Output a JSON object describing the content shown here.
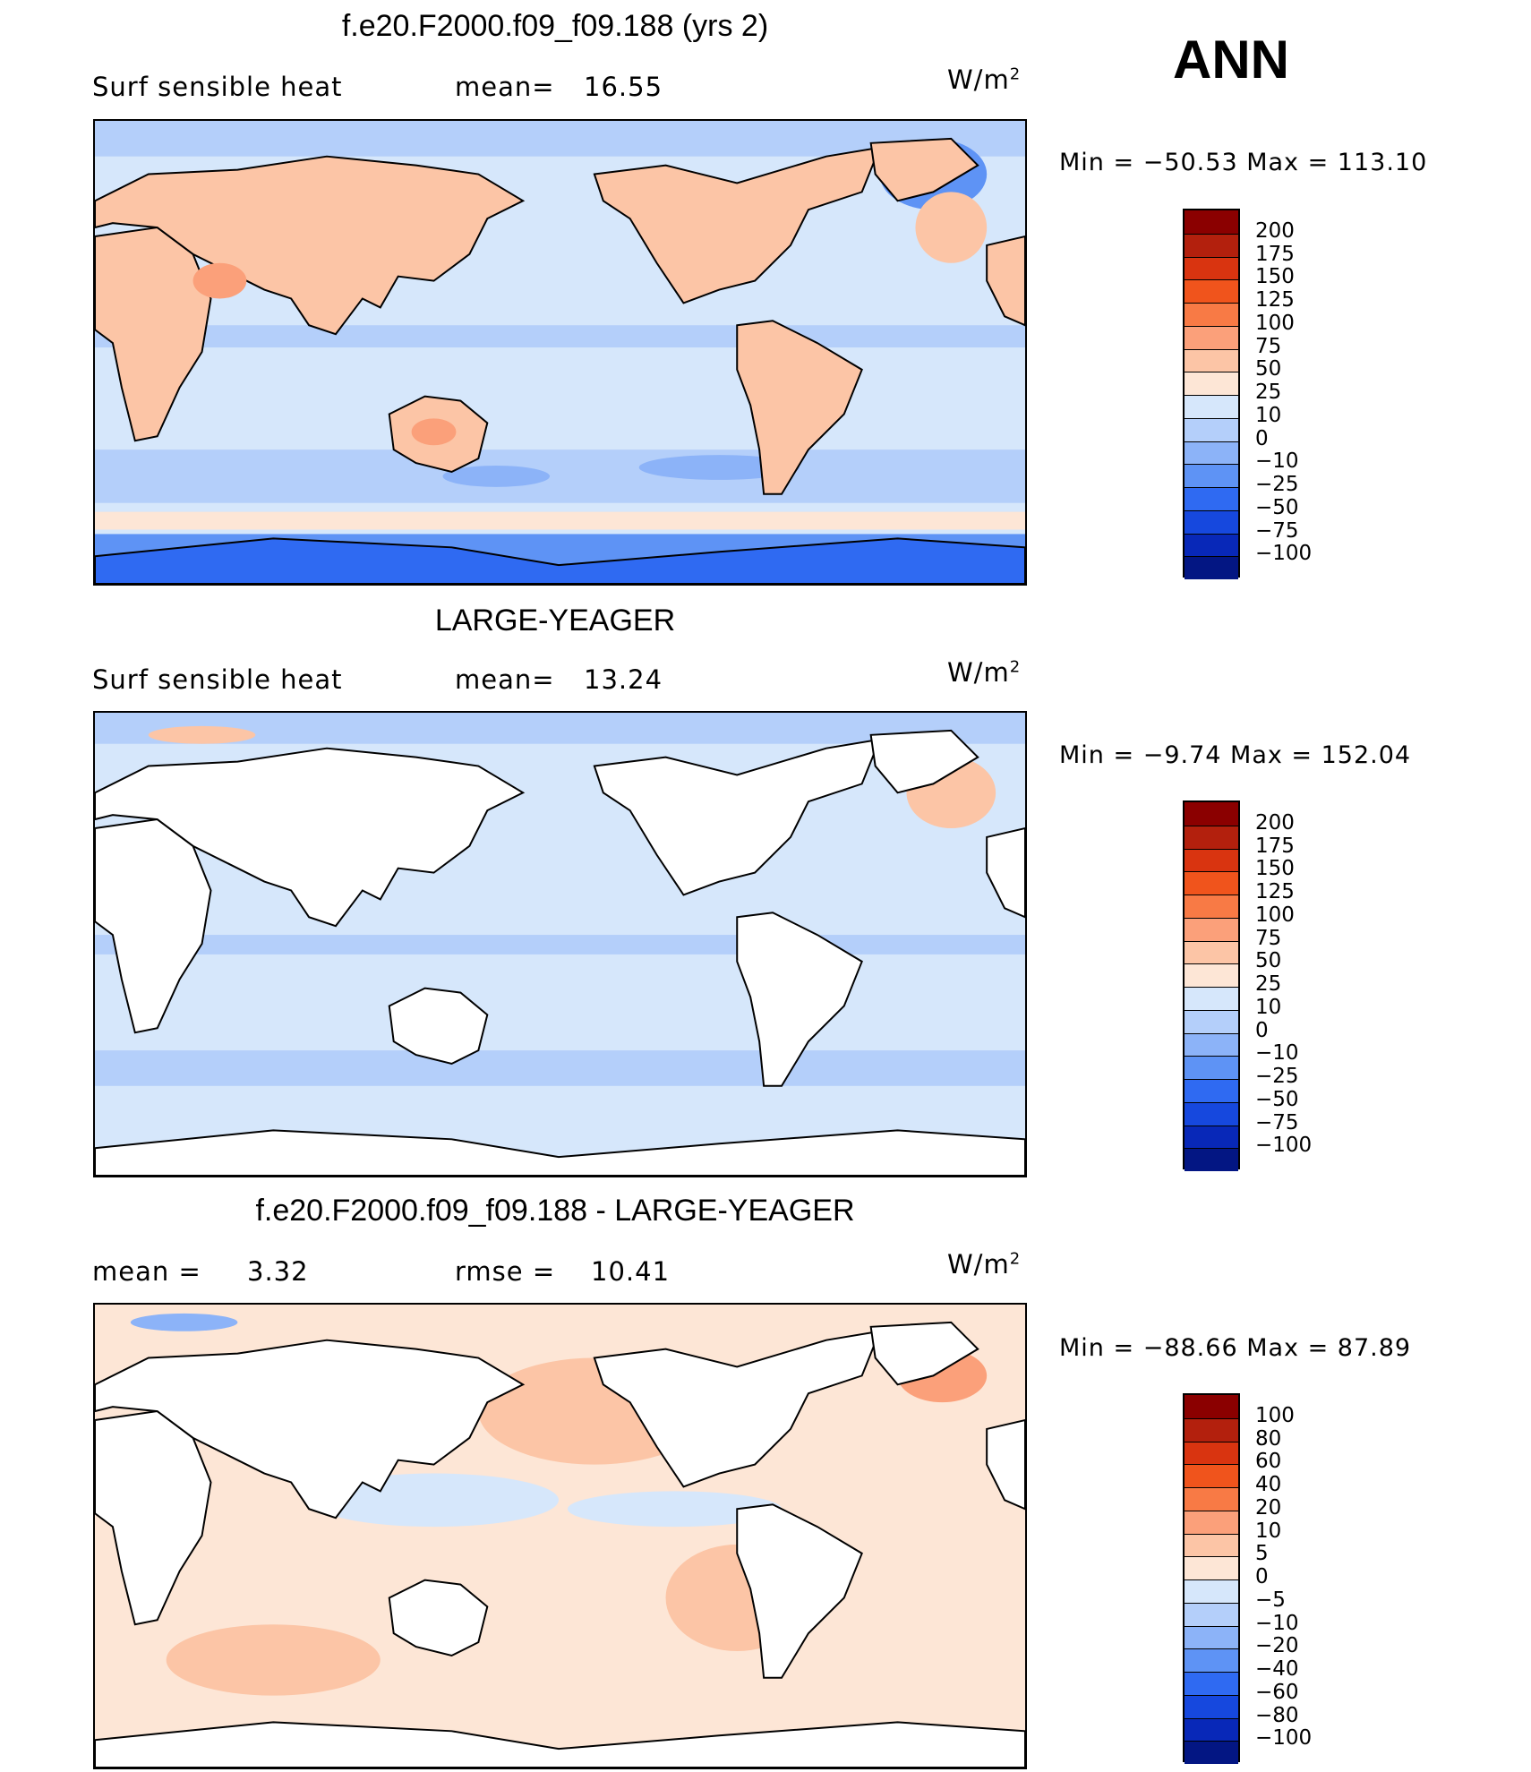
{
  "season": "ANN",
  "panels": [
    {
      "id": "test",
      "title": "f.e20.F2000.f09_f09.188 (yrs 2)",
      "left_label": "Surf  sensible  heat",
      "stat_label": "mean=",
      "stat_value": "16.55",
      "stat2_label": "",
      "stat2_value": "",
      "units_prefix": "W/m",
      "units_sup": "2",
      "minmax": "Min  =  −50.53  Max  =  113.10",
      "levels": [
        "200",
        "175",
        "150",
        "125",
        "100",
        "75",
        "50",
        "25",
        "10",
        "0",
        "−10",
        "−25",
        "−50",
        "−75",
        "−100"
      ],
      "colors": [
        "#8b0000",
        "#b3200d",
        "#d93410",
        "#f0541c",
        "#f87a45",
        "#fba07a",
        "#fcc5a6",
        "#fde6d6",
        "#d6e7fb",
        "#b4cffa",
        "#8cb3f8",
        "#5e93f5",
        "#2f6af2",
        "#1648de",
        "#0828b8",
        "#031683"
      ],
      "pattern": "full"
    },
    {
      "id": "obs",
      "title": "LARGE-YEAGER",
      "left_label": "Surf  sensible  heat",
      "stat_label": "mean=",
      "stat_value": "13.24",
      "stat2_label": "",
      "stat2_value": "",
      "units_prefix": "W/m",
      "units_sup": "2",
      "minmax": "Min  =   −9.74  Max  =  152.04",
      "levels": [
        "200",
        "175",
        "150",
        "125",
        "100",
        "75",
        "50",
        "25",
        "10",
        "0",
        "−10",
        "−25",
        "−50",
        "−75",
        "−100"
      ],
      "colors": [
        "#8b0000",
        "#b3200d",
        "#d93410",
        "#f0541c",
        "#f87a45",
        "#fba07a",
        "#fcc5a6",
        "#fde6d6",
        "#d6e7fb",
        "#b4cffa",
        "#8cb3f8",
        "#5e93f5",
        "#2f6af2",
        "#1648de",
        "#0828b8",
        "#031683"
      ],
      "pattern": "ocean"
    },
    {
      "id": "diff",
      "title": "f.e20.F2000.f09_f09.188 - LARGE-YEAGER",
      "left_label": "mean  =",
      "stat_label": "",
      "stat_value": "3.32",
      "stat2_label": "rmse  =",
      "stat2_value": "10.41",
      "units_prefix": "W/m",
      "units_sup": "2",
      "minmax": "Min  =  −88.66  Max  =   87.89",
      "levels": [
        "100",
        "80",
        "60",
        "40",
        "20",
        "10",
        "5",
        "0",
        "−5",
        "−10",
        "−20",
        "−40",
        "−60",
        "−80",
        "−100"
      ],
      "colors": [
        "#8b0000",
        "#b3200d",
        "#d93410",
        "#f0541c",
        "#f87a45",
        "#fba07a",
        "#fcc5a6",
        "#fde6d6",
        "#d6e7fb",
        "#b4cffa",
        "#8cb3f8",
        "#5e93f5",
        "#2f6af2",
        "#1648de",
        "#0828b8",
        "#031683"
      ],
      "pattern": "diff"
    }
  ]
}
